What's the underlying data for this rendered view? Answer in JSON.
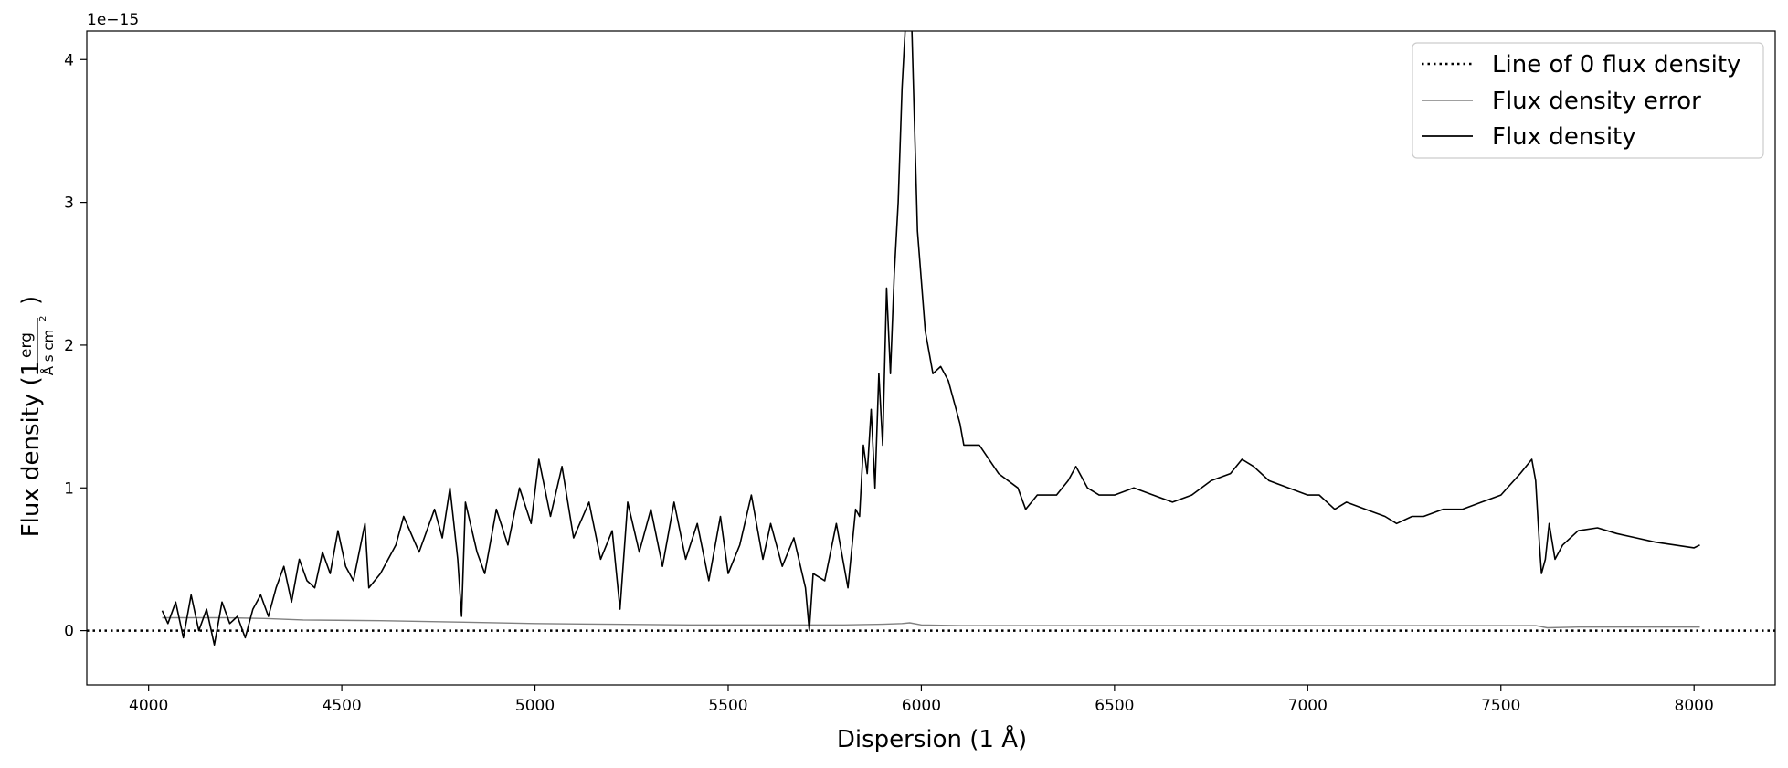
{
  "chart_data": {
    "type": "line",
    "xlabel": "Dispersion (1 Å)",
    "ylabel": "Flux density (1 erg/(Å s cm²))",
    "ylabel_main": "Flux density (1",
    "ylabel_num": "erg",
    "ylabel_den": "Å s cm",
    "ylabel_den_sup": "2",
    "ylabel_close": ")",
    "y_offset_label": "1e−15",
    "y_scale": 1e-15,
    "xlim": [
      3840,
      8210
    ],
    "ylim": [
      -0.38,
      4.2
    ],
    "x_ticks": [
      4000,
      4500,
      5000,
      5500,
      6000,
      6500,
      7000,
      7500,
      8000
    ],
    "x_tick_labels": [
      "4000",
      "4500",
      "5000",
      "5500",
      "6000",
      "6500",
      "7000",
      "7500",
      "8000"
    ],
    "y_ticks": [
      0,
      1,
      2,
      3,
      4
    ],
    "y_tick_labels": [
      "0",
      "1",
      "2",
      "3",
      "4"
    ],
    "grid": false,
    "legend_position": "top-right",
    "legend": [
      {
        "label": "Line of 0 flux density",
        "style": "dotted",
        "color": "#000000"
      },
      {
        "label": "Flux density error",
        "style": "solid",
        "color": "#808080"
      },
      {
        "label": "Flux density",
        "style": "solid",
        "color": "#000000"
      }
    ],
    "series": [
      {
        "name": "Line of 0 flux density",
        "color": "#000000",
        "style": "dotted",
        "x": [
          3840,
          8210
        ],
        "y": [
          0,
          0
        ]
      },
      {
        "name": "Flux density error",
        "color": "#808080",
        "style": "solid",
        "x": [
          4035,
          4100,
          4200,
          4300,
          4400,
          4600,
          4800,
          5000,
          5200,
          5400,
          5600,
          5800,
          5900,
          5950,
          5970,
          6000,
          6100,
          6300,
          6500,
          7000,
          7500,
          7590,
          7620,
          7700,
          8015
        ],
        "y": [
          0.09,
          0.09,
          0.09,
          0.085,
          0.075,
          0.07,
          0.06,
          0.05,
          0.045,
          0.04,
          0.04,
          0.04,
          0.045,
          0.05,
          0.055,
          0.04,
          0.035,
          0.035,
          0.035,
          0.035,
          0.035,
          0.035,
          0.02,
          0.025,
          0.025
        ]
      },
      {
        "name": "Flux density",
        "color": "#000000",
        "style": "solid",
        "x": [
          4035,
          4050,
          4070,
          4090,
          4110,
          4130,
          4150,
          4170,
          4190,
          4210,
          4230,
          4250,
          4270,
          4290,
          4310,
          4330,
          4350,
          4370,
          4390,
          4410,
          4430,
          4450,
          4470,
          4490,
          4510,
          4530,
          4560,
          4570,
          4600,
          4640,
          4660,
          4700,
          4740,
          4760,
          4780,
          4800,
          4810,
          4820,
          4850,
          4870,
          4900,
          4930,
          4960,
          4990,
          5010,
          5040,
          5070,
          5100,
          5140,
          5170,
          5200,
          5220,
          5240,
          5270,
          5300,
          5330,
          5360,
          5390,
          5420,
          5450,
          5480,
          5500,
          5530,
          5560,
          5590,
          5610,
          5640,
          5670,
          5700,
          5710,
          5720,
          5750,
          5780,
          5810,
          5830,
          5840,
          5850,
          5860,
          5870,
          5880,
          5890,
          5900,
          5910,
          5920,
          5930,
          5940,
          5950,
          5960,
          5965,
          5975,
          5990,
          6010,
          6030,
          6050,
          6070,
          6090,
          6100,
          6110,
          6150,
          6200,
          6250,
          6270,
          6300,
          6350,
          6380,
          6400,
          6430,
          6460,
          6500,
          6550,
          6600,
          6650,
          6700,
          6750,
          6800,
          6830,
          6860,
          6900,
          6950,
          7000,
          7030,
          7070,
          7100,
          7150,
          7200,
          7230,
          7270,
          7300,
          7350,
          7400,
          7450,
          7500,
          7550,
          7580,
          7590,
          7600,
          7605,
          7615,
          7625,
          7640,
          7660,
          7700,
          7750,
          7800,
          7850,
          7900,
          7950,
          8000,
          8015
        ],
        "y": [
          0.14,
          0.05,
          0.2,
          -0.05,
          0.25,
          0.0,
          0.15,
          -0.1,
          0.2,
          0.05,
          0.1,
          -0.05,
          0.15,
          0.25,
          0.1,
          0.3,
          0.45,
          0.2,
          0.5,
          0.35,
          0.3,
          0.55,
          0.4,
          0.7,
          0.45,
          0.35,
          0.75,
          0.3,
          0.4,
          0.6,
          0.8,
          0.55,
          0.85,
          0.65,
          1.0,
          0.5,
          0.1,
          0.9,
          0.55,
          0.4,
          0.85,
          0.6,
          1.0,
          0.75,
          1.2,
          0.8,
          1.15,
          0.65,
          0.9,
          0.5,
          0.7,
          0.15,
          0.9,
          0.55,
          0.85,
          0.45,
          0.9,
          0.5,
          0.75,
          0.35,
          0.8,
          0.4,
          0.6,
          0.95,
          0.5,
          0.75,
          0.45,
          0.65,
          0.3,
          0.0,
          0.4,
          0.35,
          0.75,
          0.3,
          0.85,
          0.8,
          1.3,
          1.1,
          1.55,
          1.0,
          1.8,
          1.3,
          2.4,
          1.8,
          2.5,
          3.0,
          3.8,
          4.3,
          4.6,
          4.25,
          2.8,
          2.1,
          1.8,
          1.85,
          1.75,
          1.55,
          1.45,
          1.3,
          1.3,
          1.1,
          1.0,
          0.85,
          0.95,
          0.95,
          1.05,
          1.15,
          1.0,
          0.95,
          0.95,
          1.0,
          0.95,
          0.9,
          0.95,
          1.05,
          1.1,
          1.2,
          1.15,
          1.05,
          1.0,
          0.95,
          0.95,
          0.85,
          0.9,
          0.85,
          0.8,
          0.75,
          0.8,
          0.8,
          0.85,
          0.85,
          0.9,
          0.95,
          1.1,
          1.2,
          1.05,
          0.6,
          0.4,
          0.5,
          0.75,
          0.5,
          0.6,
          0.7,
          0.72,
          0.68,
          0.65,
          0.62,
          0.6,
          0.58,
          0.6
        ]
      }
    ]
  }
}
